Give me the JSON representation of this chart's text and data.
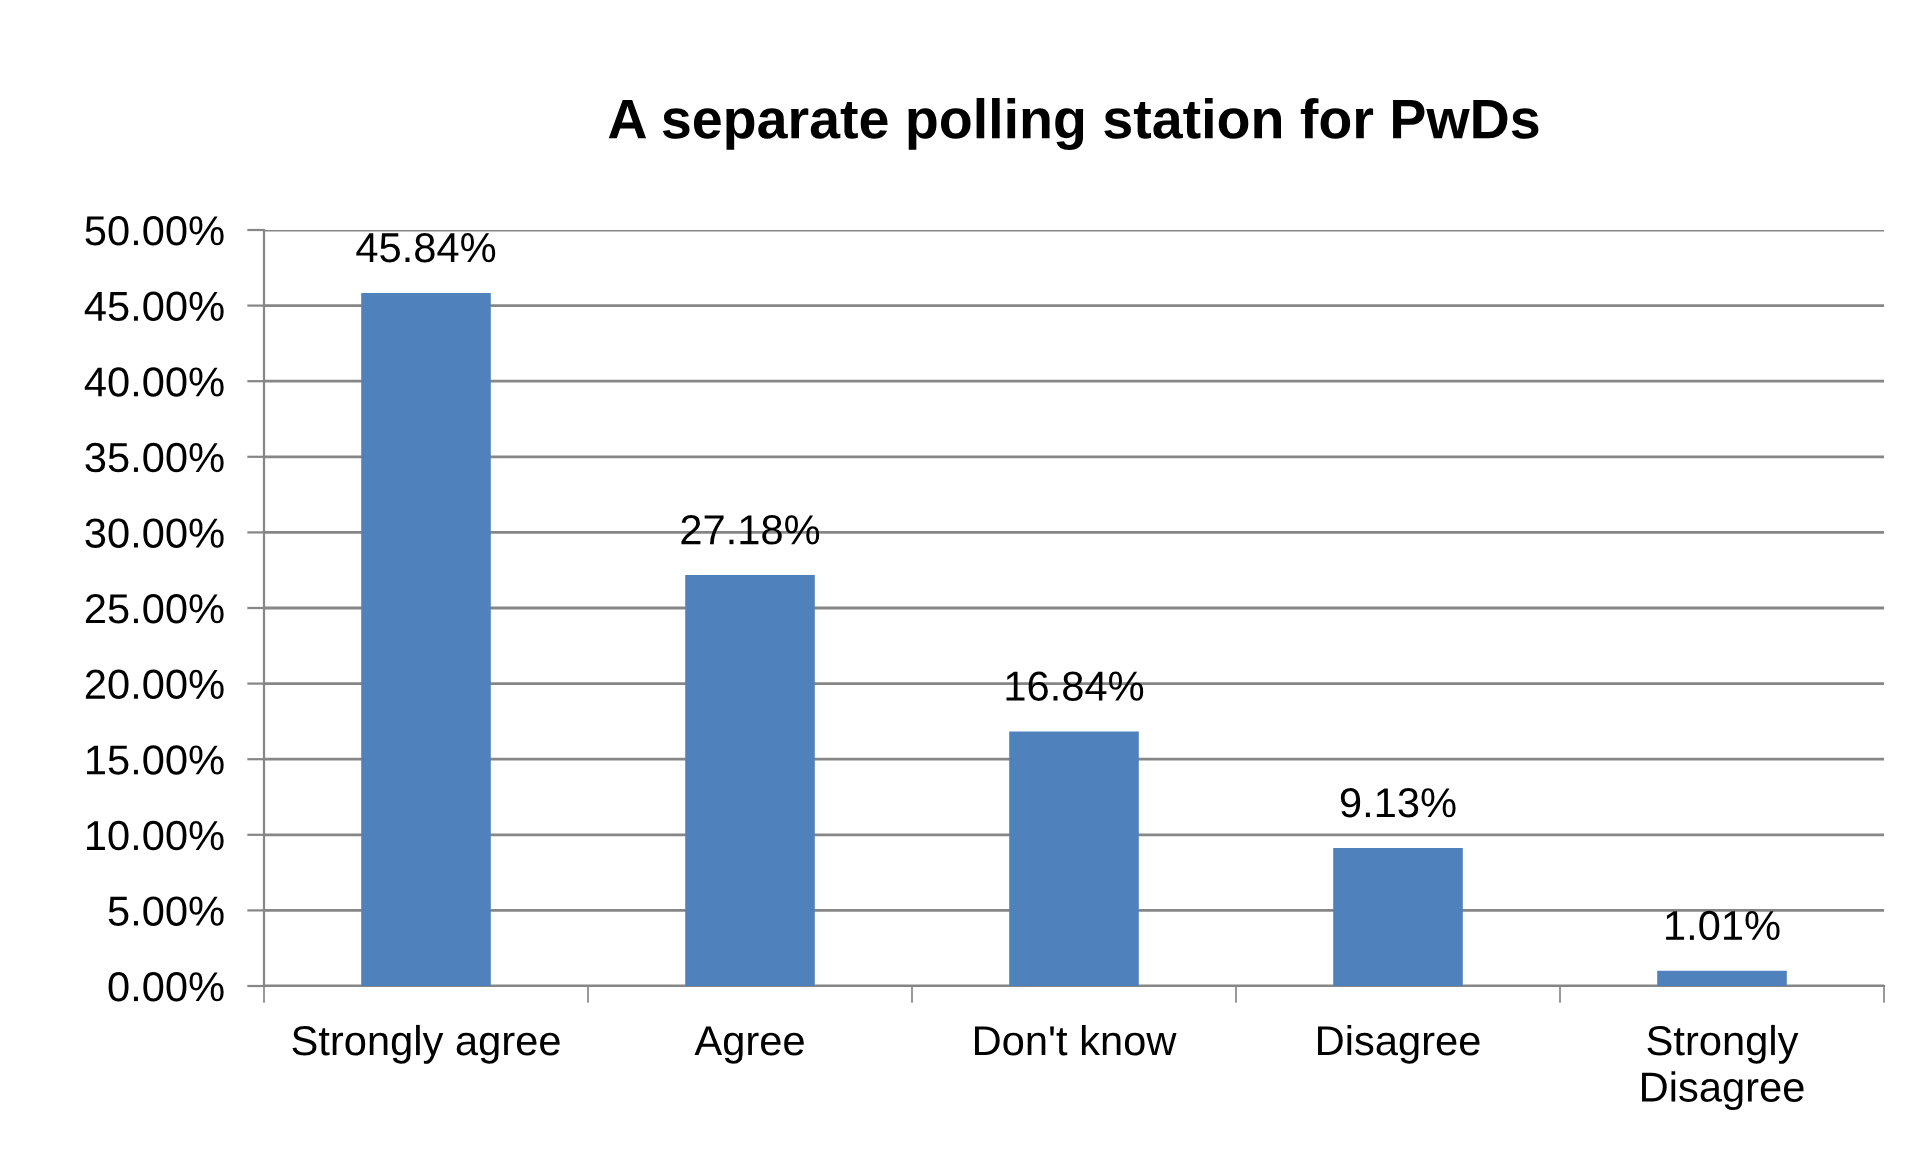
{
  "chart_data": {
    "type": "bar",
    "title": "A separate polling station for PwDs",
    "categories": [
      "Strongly agree",
      "Agree",
      "Don't know",
      "Disagree",
      "Strongly\nDisagree"
    ],
    "values": [
      45.84,
      27.18,
      16.84,
      9.13,
      1.01
    ],
    "color": "#4f81bd",
    "value_labels": [
      "45.84%",
      "27.18%",
      "16.84%",
      "9.13%",
      "1.01%"
    ],
    "ylim": [
      0,
      50
    ],
    "yticks": [
      {
        "value": 0,
        "label": "0.00%"
      },
      {
        "value": 5,
        "label": "5.00%"
      },
      {
        "value": 10,
        "label": "10.00%"
      },
      {
        "value": 15,
        "label": "15.00%"
      },
      {
        "value": 20,
        "label": "20.00%"
      },
      {
        "value": 25,
        "label": "25.00%"
      },
      {
        "value": 30,
        "label": "30.00%"
      },
      {
        "value": 35,
        "label": "35.00%"
      },
      {
        "value": 40,
        "label": "40.00%"
      },
      {
        "value": 45,
        "label": "45.00%"
      },
      {
        "value": 50,
        "label": "50.00%"
      }
    ],
    "grid": "y",
    "legend": false
  }
}
